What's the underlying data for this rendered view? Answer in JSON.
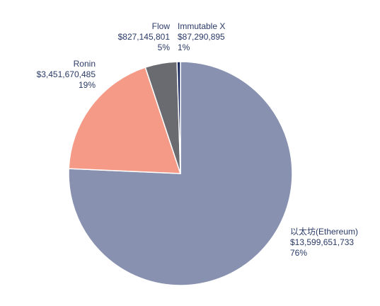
{
  "chart_data": {
    "type": "pie",
    "slices": [
      {
        "label": "以太坊(Ethereum)",
        "value": 13599651733,
        "value_text": "$13,599,651,733",
        "percent_text": "76%",
        "color": "#8891af"
      },
      {
        "label": "Ronin",
        "value": 3451670485,
        "value_text": "$3,451,670,485",
        "percent_text": "19%",
        "color": "#f59a86"
      },
      {
        "label": "Flow",
        "value": 827145801,
        "value_text": "$827,145,801",
        "percent_text": "5%",
        "color": "#6a6b70"
      },
      {
        "label": "Immutable X",
        "value": 87290895,
        "value_text": "$87,290,895",
        "percent_text": "1%",
        "color": "#1b2a5c"
      }
    ]
  }
}
